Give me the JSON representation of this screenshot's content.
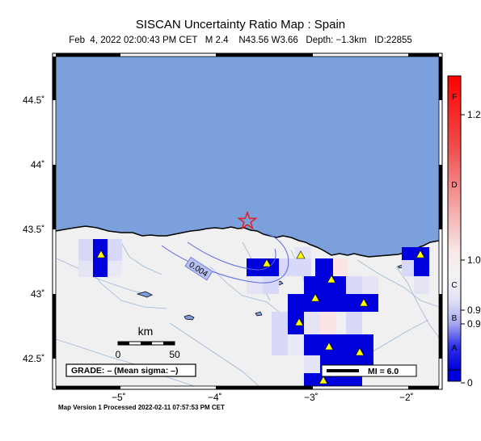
{
  "map": {
    "title": "SISCAN Uncertainty Ratio Map : Spain",
    "subtitle": "Feb  4, 2022 02:00:43 PM CET   M 2.4    N43.56 W3.66   Depth: −1.3km   ID:22855",
    "footer": "Map Version 1 Processed 2022-02-11 07:57:53 PM CET",
    "lat_ticks": [
      "44.5˚",
      "44˚",
      "43.5˚",
      "43˚",
      "42.5˚"
    ],
    "lon_ticks": [
      "−5˚",
      "−4˚",
      "−3˚",
      "−2˚"
    ],
    "contour_label": "0.004",
    "scale_title": "km",
    "scale_min": "0",
    "scale_max": "50",
    "grade_text": "GRADE: – (Mean sigma: –)",
    "mi_text": "MI = 6.0",
    "colorbar_letters": [
      "F",
      "D",
      "C",
      "B",
      "A"
    ],
    "colorbar_values": [
      "1.2",
      "1.0",
      "0.9",
      "0.9",
      "0"
    ],
    "colors": {
      "water": "#7ba0dc",
      "land": "#f0f0f0",
      "cell_high": "#0000dd",
      "cell_low": "#d8d8f8",
      "cell_pink": "#fce4e4",
      "epicenter": "#e02020",
      "station": "#ffff00"
    },
    "icons": {
      "epicenter": "star-icon",
      "station": "triangle-icon"
    }
  }
}
